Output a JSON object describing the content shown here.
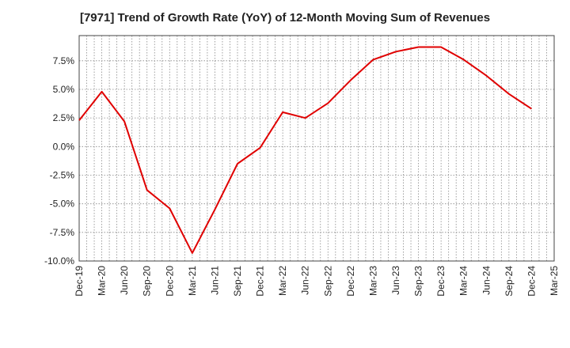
{
  "chart_data": {
    "type": "line",
    "title": "[7971]  Trend of Growth Rate (YoY) of 12-Month Moving Sum of Revenues",
    "xlabel": "",
    "ylabel": "",
    "x_tick_labels": [
      "Dec-19",
      "Mar-20",
      "Jun-20",
      "Sep-20",
      "Dec-20",
      "Mar-21",
      "Jun-21",
      "Sep-21",
      "Dec-21",
      "Mar-22",
      "Jun-22",
      "Sep-22",
      "Dec-22",
      "Mar-23",
      "Jun-23",
      "Sep-23",
      "Dec-23",
      "Mar-24",
      "Jun-24",
      "Sep-24",
      "Dec-24",
      "Mar-25"
    ],
    "y_tick_labels": [
      "-10.0%",
      "-7.5%",
      "-5.0%",
      "-2.5%",
      "0.0%",
      "2.5%",
      "5.0%",
      "7.5%"
    ],
    "y_ticks": [
      -10.0,
      -7.5,
      -5.0,
      -2.5,
      0.0,
      2.5,
      5.0,
      7.5
    ],
    "ylim": [
      -10.0,
      9.7
    ],
    "grid": true,
    "legend": "none",
    "series": [
      {
        "color": "#e00000",
        "x": [
          "Dec-19",
          "Mar-20",
          "Jun-20",
          "Sep-20",
          "Dec-20",
          "Mar-21",
          "Jun-21",
          "Sep-21",
          "Dec-21",
          "Mar-22",
          "Jun-22",
          "Sep-22",
          "Dec-22",
          "Mar-23",
          "Jun-23",
          "Sep-23",
          "Dec-23",
          "Mar-24",
          "Jun-24",
          "Sep-24",
          "Dec-24"
        ],
        "values": [
          2.3,
          4.8,
          2.2,
          -3.8,
          -5.4,
          -9.3,
          -5.5,
          -1.5,
          -0.1,
          3.0,
          2.5,
          3.8,
          5.8,
          7.6,
          8.3,
          8.7,
          8.7,
          7.6,
          6.2,
          4.6,
          3.3
        ]
      }
    ]
  }
}
